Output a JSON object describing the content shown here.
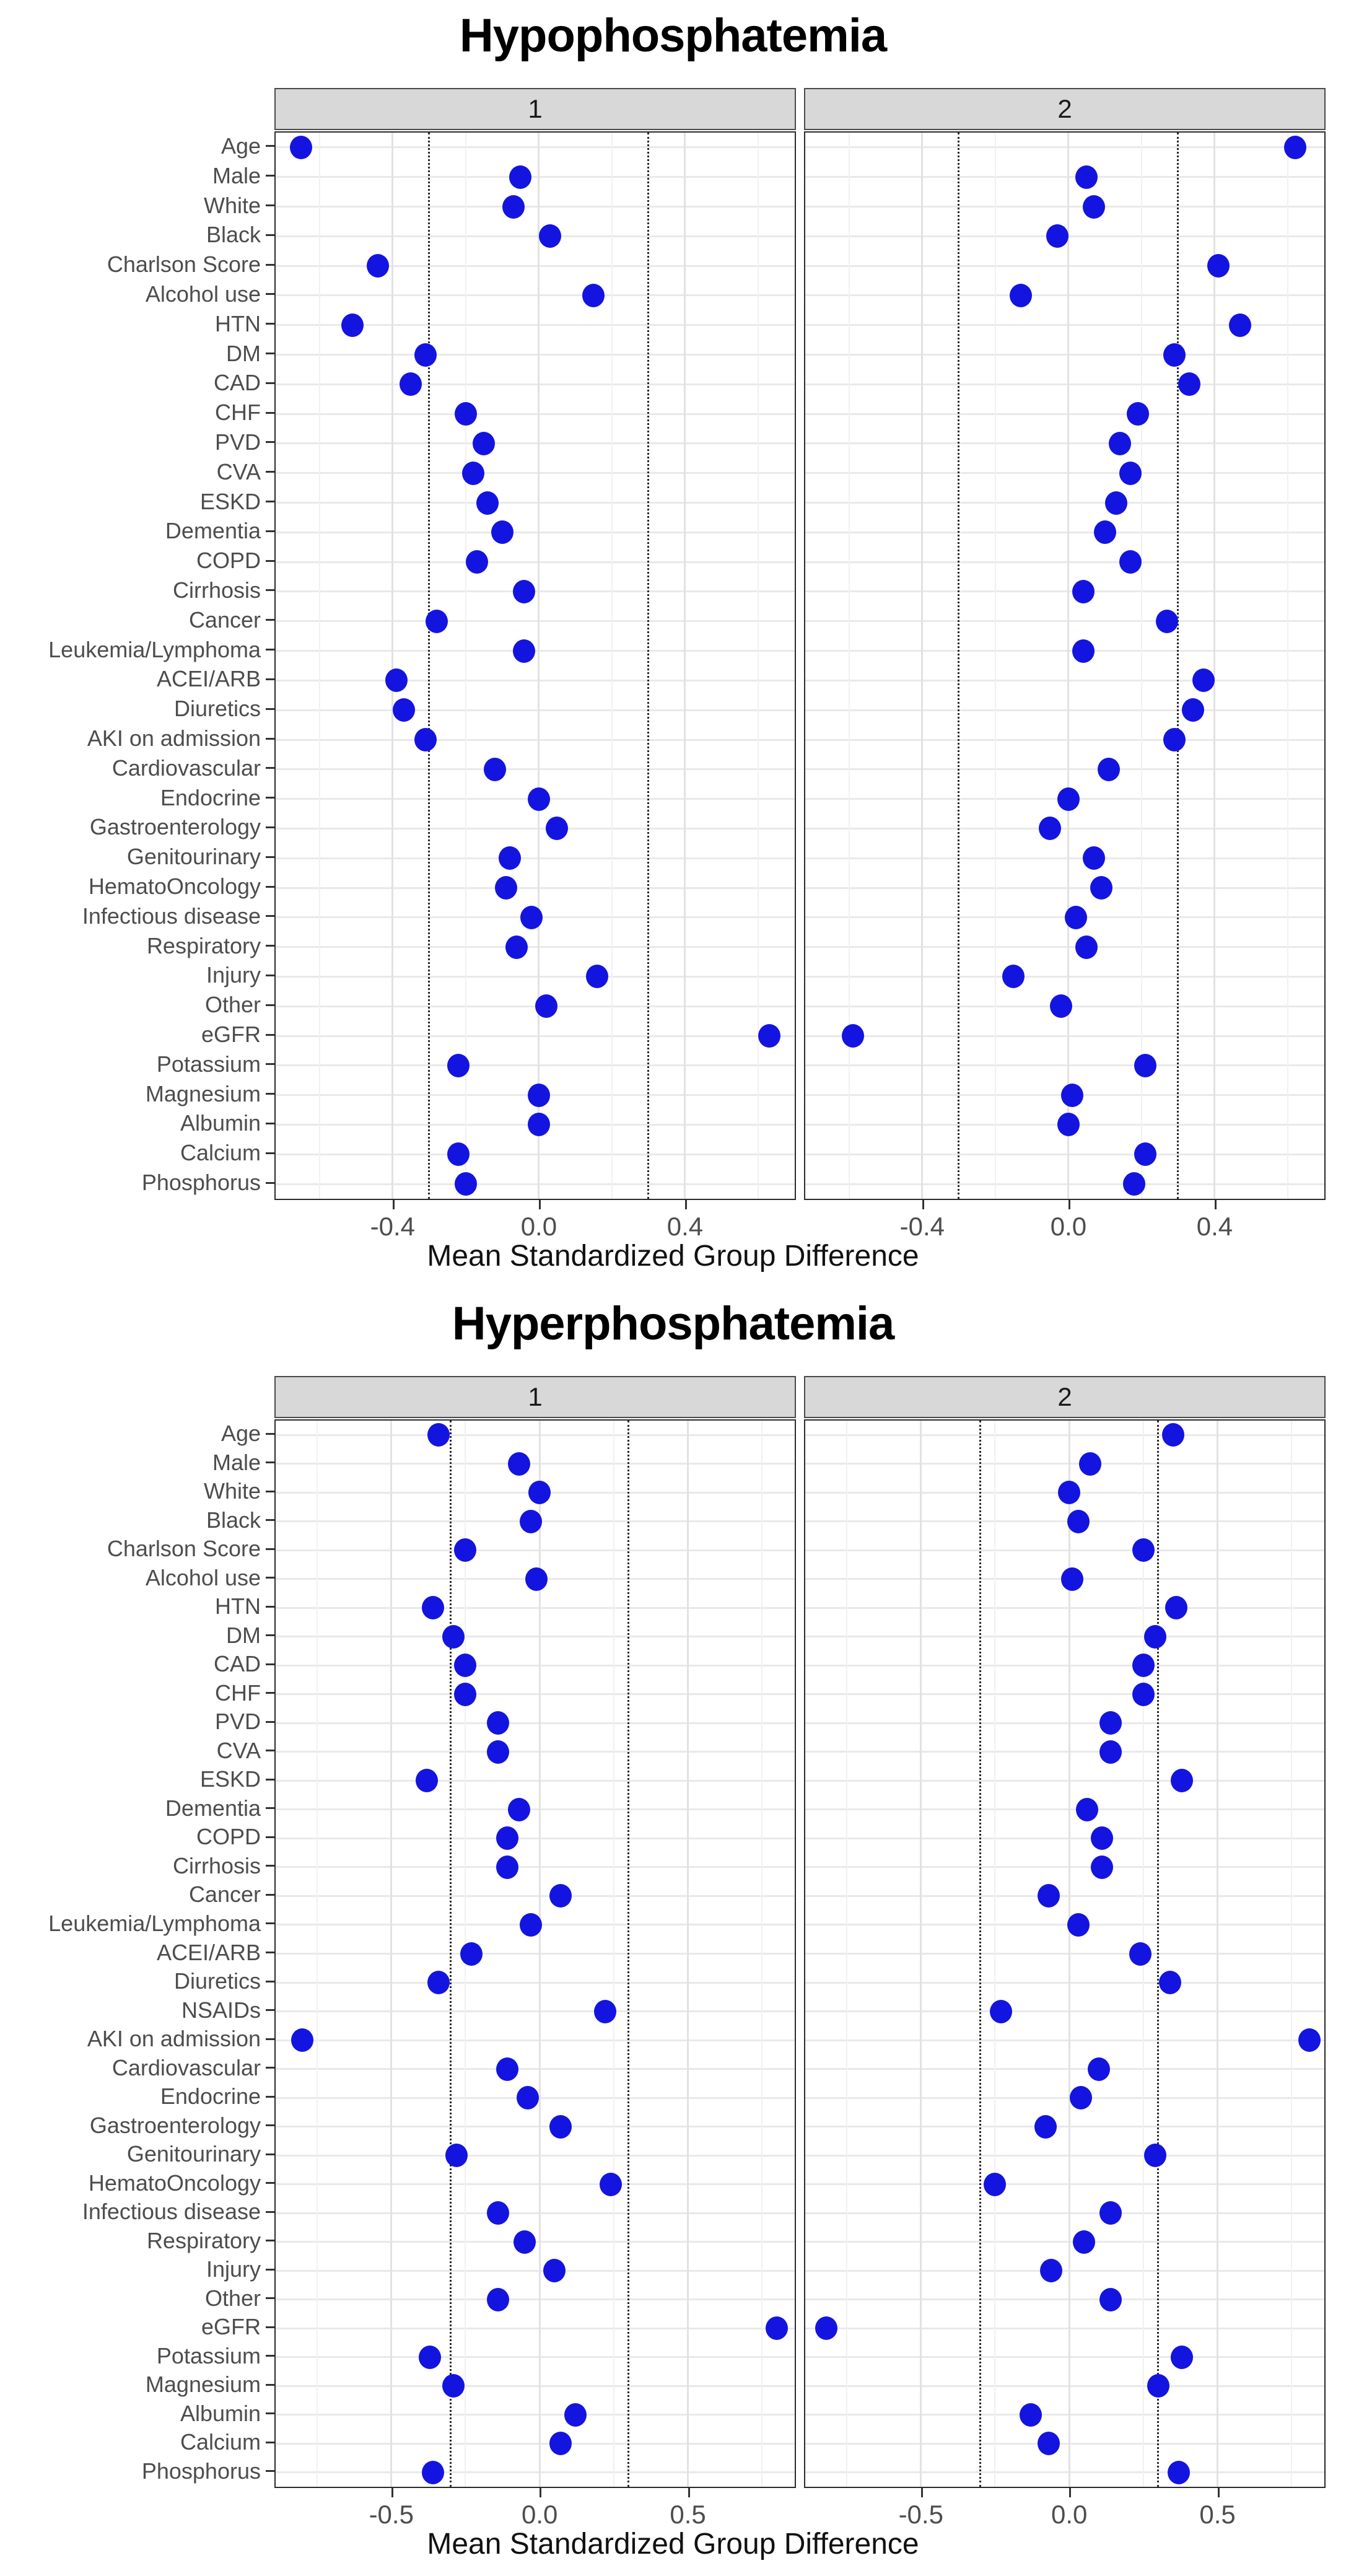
{
  "style": {
    "dot_color": "#1414e0",
    "strip_bg": "#d8d8d8",
    "grid_color": "#e2e2e2",
    "reference_line_color": "#2a2a2a",
    "axis_text_color": "#4d4d4d",
    "title_color": "#000000",
    "panel_bg": "#ffffff"
  },
  "chart_data": [
    {
      "type": "scatter",
      "title": "Hypophosphatemia",
      "xlabel": "Mean Standardized Group Difference",
      "panels": [
        "1",
        "2"
      ],
      "legend": "none",
      "grid": true,
      "xlim": [
        -0.72,
        0.7
      ],
      "x_ticks": [
        -0.4,
        0.0,
        0.4
      ],
      "x_tick_labels": [
        "-0.4",
        "0.0",
        "0.4"
      ],
      "x_minor_ticks": [
        -0.6,
        -0.2,
        0.2,
        0.6
      ],
      "reference_lines": [
        -0.3,
        0.3
      ],
      "categories": [
        "Age",
        "Male",
        "White",
        "Black",
        "Charlson Score",
        "Alcohol use",
        "HTN",
        "DM",
        "CAD",
        "CHF",
        "PVD",
        "CVA",
        "ESKD",
        "Dementia",
        "COPD",
        "Cirrhosis",
        "Cancer",
        "Leukemia/Lymphoma",
        "ACEI/ARB",
        "Diuretics",
        "AKI on admission",
        "Cardiovascular",
        "Endocrine",
        "Gastroenterology",
        "Genitourinary",
        "HematoOncology",
        "Infectious disease",
        "Respiratory",
        "Injury",
        "Other",
        "eGFR",
        "Potassium",
        "Magnesium",
        "Albumin",
        "Calcium",
        "Phosphorus"
      ],
      "series": [
        {
          "name": "1",
          "values": [
            -0.65,
            -0.05,
            -0.07,
            0.03,
            -0.44,
            0.15,
            -0.51,
            -0.31,
            -0.35,
            -0.2,
            -0.15,
            -0.18,
            -0.14,
            -0.1,
            -0.17,
            -0.04,
            -0.28,
            -0.04,
            -0.39,
            -0.37,
            -0.31,
            -0.12,
            0.0,
            0.05,
            -0.08,
            -0.09,
            -0.02,
            -0.06,
            0.16,
            0.02,
            0.63,
            -0.22,
            0.0,
            0.0,
            -0.22,
            -0.2
          ]
        },
        {
          "name": "2",
          "values": [
            0.62,
            0.05,
            0.07,
            -0.03,
            0.41,
            -0.13,
            0.47,
            0.29,
            0.33,
            0.19,
            0.14,
            0.17,
            0.13,
            0.1,
            0.17,
            0.04,
            0.27,
            0.04,
            0.37,
            0.34,
            0.29,
            0.11,
            0.0,
            -0.05,
            0.07,
            0.09,
            0.02,
            0.05,
            -0.15,
            -0.02,
            -0.59,
            0.21,
            0.01,
            0.0,
            0.21,
            0.18
          ]
        }
      ]
    },
    {
      "type": "scatter",
      "title": "Hyperphosphatemia",
      "xlabel": "Mean Standardized Group Difference",
      "panels": [
        "1",
        "2"
      ],
      "legend": "none",
      "grid": true,
      "xlim": [
        -0.89,
        0.86
      ],
      "x_ticks": [
        -0.5,
        0.0,
        0.5
      ],
      "x_tick_labels": [
        "-0.5",
        "0.0",
        "0.5"
      ],
      "x_minor_ticks": [
        -0.75,
        -0.25,
        0.25,
        0.75
      ],
      "reference_lines": [
        -0.3,
        0.3
      ],
      "categories": [
        "Age",
        "Male",
        "White",
        "Black",
        "Charlson Score",
        "Alcohol use",
        "HTN",
        "DM",
        "CAD",
        "CHF",
        "PVD",
        "CVA",
        "ESKD",
        "Dementia",
        "COPD",
        "Cirrhosis",
        "Cancer",
        "Leukemia/Lymphoma",
        "ACEI/ARB",
        "Diuretics",
        "NSAIDs",
        "AKI on admission",
        "Cardiovascular",
        "Endocrine",
        "Gastroenterology",
        "Genitourinary",
        "HematoOncology",
        "Infectious disease",
        "Respiratory",
        "Injury",
        "Other",
        "eGFR",
        "Potassium",
        "Magnesium",
        "Albumin",
        "Calcium",
        "Phosphorus"
      ],
      "series": [
        {
          "name": "1",
          "values": [
            -0.34,
            -0.07,
            0.0,
            -0.03,
            -0.25,
            -0.01,
            -0.36,
            -0.29,
            -0.25,
            -0.25,
            -0.14,
            -0.14,
            -0.38,
            -0.07,
            -0.11,
            -0.11,
            0.07,
            -0.03,
            -0.23,
            -0.34,
            0.22,
            -0.8,
            -0.11,
            -0.04,
            0.07,
            -0.28,
            0.24,
            -0.14,
            -0.05,
            0.05,
            -0.14,
            0.8,
            -0.37,
            -0.29,
            0.12,
            0.07,
            -0.36
          ]
        },
        {
          "name": "2",
          "values": [
            0.35,
            0.07,
            0.0,
            0.03,
            0.25,
            0.01,
            0.36,
            0.29,
            0.25,
            0.25,
            0.14,
            0.14,
            0.38,
            0.06,
            0.11,
            0.11,
            -0.07,
            0.03,
            0.24,
            0.34,
            -0.23,
            0.81,
            0.1,
            0.04,
            -0.08,
            0.29,
            -0.25,
            0.14,
            0.05,
            -0.06,
            0.14,
            -0.82,
            0.38,
            0.3,
            -0.13,
            -0.07,
            0.37
          ]
        }
      ]
    }
  ]
}
